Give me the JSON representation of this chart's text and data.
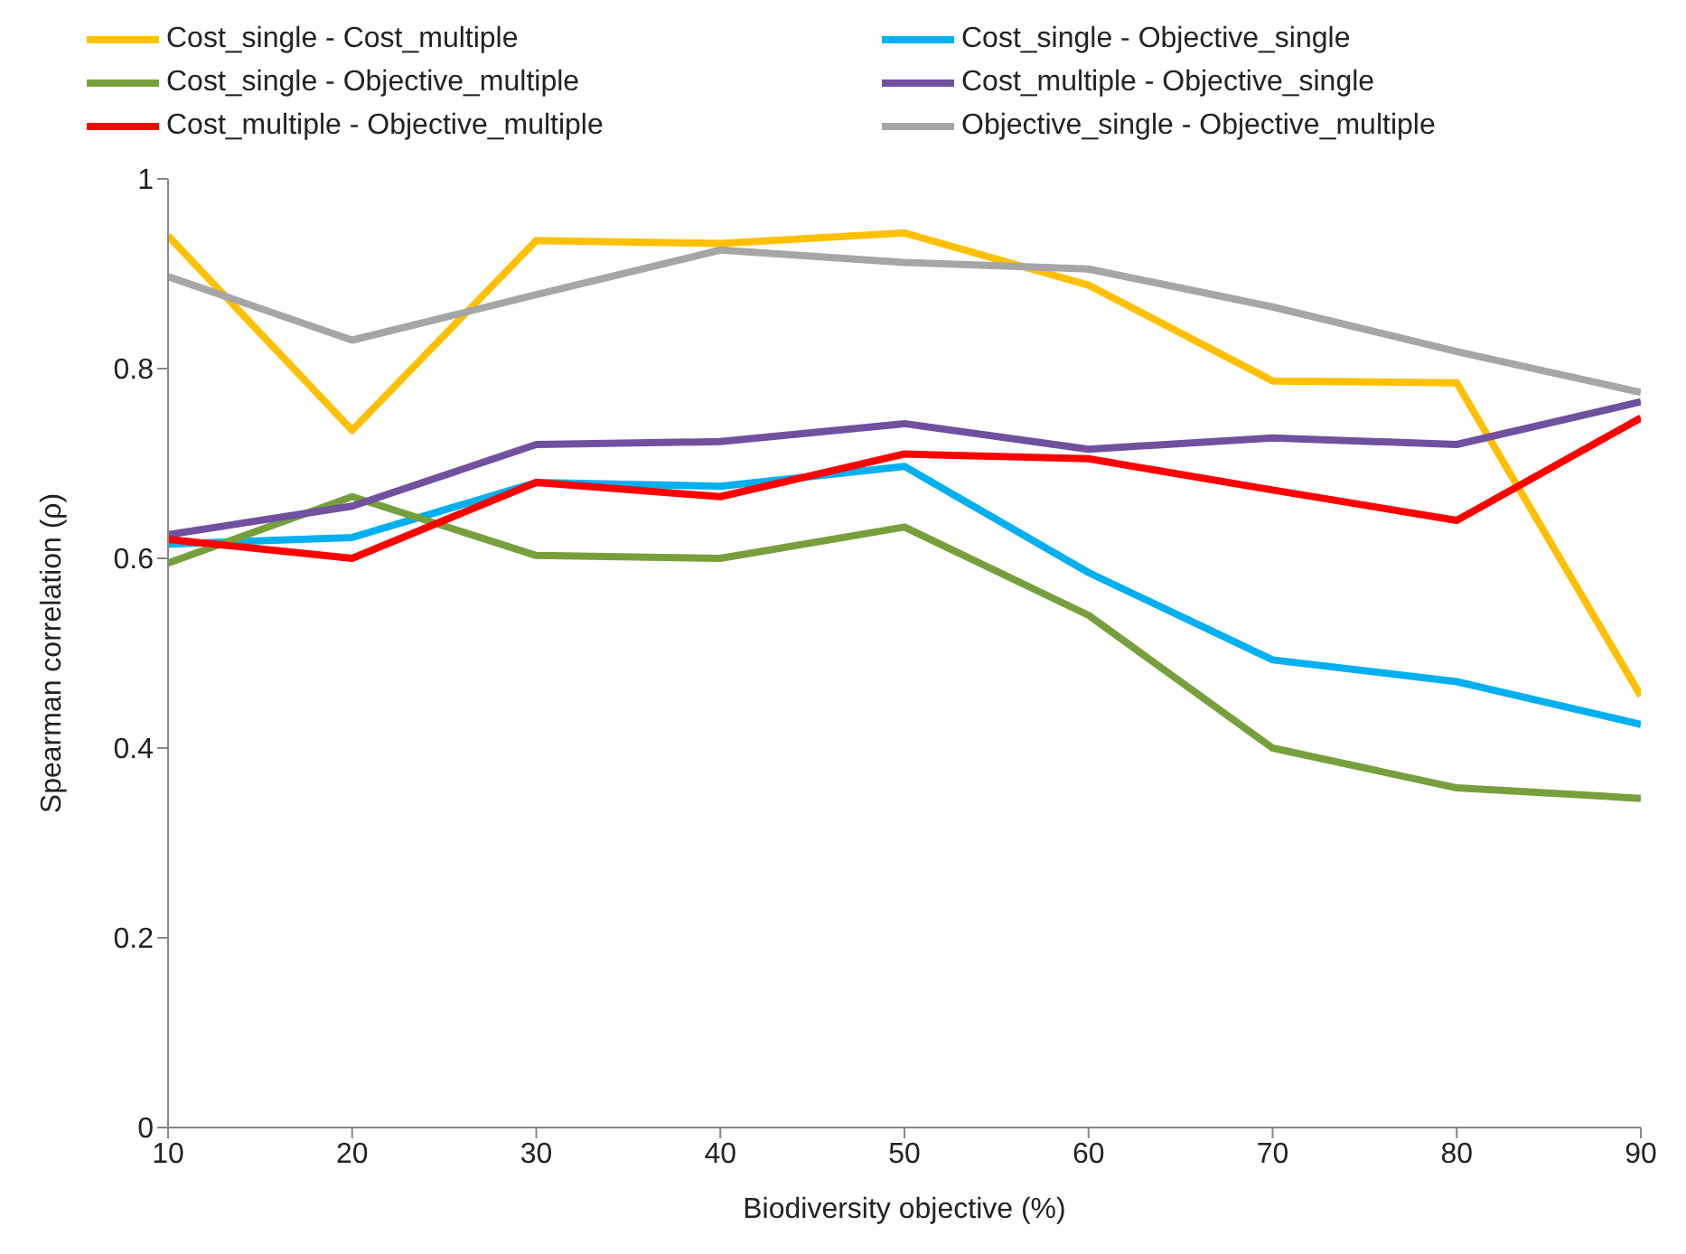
{
  "chart_data": {
    "type": "line",
    "xlabel": "Biodiversity objective (%)",
    "ylabel": "Spearman correlation (ρ)",
    "x": [
      10,
      20,
      30,
      40,
      50,
      60,
      70,
      80,
      90
    ],
    "xlim": [
      10,
      90
    ],
    "xticks": [
      10,
      20,
      30,
      40,
      50,
      60,
      70,
      80,
      90
    ],
    "ylim": [
      0,
      1
    ],
    "yticks": [
      0,
      0.2,
      0.4,
      0.6,
      0.8,
      1
    ],
    "grid": false,
    "legend": "top",
    "marker": "none",
    "line_style": "solid",
    "series": [
      {
        "name": "Cost_single - Cost_multiple",
        "color": "#ffc000",
        "values": [
          0.94,
          0.735,
          0.935,
          0.932,
          0.943,
          0.888,
          0.787,
          0.785,
          0.455
        ]
      },
      {
        "name": "Cost_single - Objective_single",
        "color": "#00b0f0",
        "values": [
          0.615,
          0.622,
          0.68,
          0.676,
          0.697,
          0.585,
          0.493,
          0.47,
          0.425
        ]
      },
      {
        "name": "Cost_single - Objective_multiple",
        "color": "#77a03c",
        "values": [
          0.595,
          0.665,
          0.603,
          0.6,
          0.633,
          0.54,
          0.4,
          0.358,
          0.347
        ]
      },
      {
        "name": "Cost_multiple - Objective_single",
        "color": "#70509f",
        "values": [
          0.625,
          0.655,
          0.72,
          0.723,
          0.742,
          0.715,
          0.727,
          0.72,
          0.765
        ]
      },
      {
        "name": "Cost_multiple - Objective_multiple",
        "color": "#ff0000",
        "values": [
          0.62,
          0.6,
          0.68,
          0.665,
          0.71,
          0.705,
          0.672,
          0.64,
          0.748
        ]
      },
      {
        "name": "Objective_single - Objective_multiple",
        "color": "#a6a6a6",
        "values": [
          0.897,
          0.83,
          0.878,
          0.925,
          0.912,
          0.905,
          0.865,
          0.818,
          0.775
        ]
      }
    ]
  }
}
